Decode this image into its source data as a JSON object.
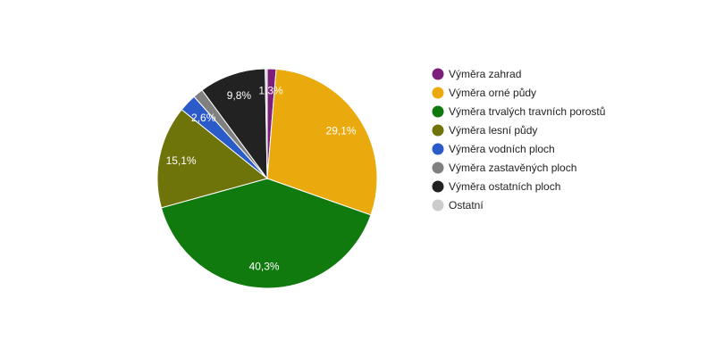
{
  "chart_data": {
    "type": "pie",
    "title": "",
    "legend_position": "right",
    "start_angle_deg": 0,
    "direction": "clockwise",
    "slices": [
      {
        "label": "Výměra zahrad",
        "value": 1.3,
        "display": "1,3%",
        "color": "#7b1f7a"
      },
      {
        "label": "Výměra orné půdy",
        "value": 29.1,
        "display": "29,1%",
        "color": "#eaa90c"
      },
      {
        "label": "Výměra trvalých travních porostů",
        "value": 40.3,
        "display": "40,3%",
        "color": "#107a0e"
      },
      {
        "label": "Výměra lesní půdy",
        "value": 15.1,
        "display": "15,1%",
        "color": "#6e740a"
      },
      {
        "label": "Výměra vodních ploch",
        "value": 2.6,
        "display": "2,6%",
        "color": "#2b5bc9"
      },
      {
        "label": "Výměra zastavěných ploch",
        "value": 1.5,
        "display": "",
        "color": "#808080"
      },
      {
        "label": "Výměra ostatních ploch",
        "value": 9.8,
        "display": "9,8%",
        "color": "#222222"
      },
      {
        "label": "Ostatní",
        "value": 0.3,
        "display": "",
        "color": "#cccccc"
      }
    ]
  }
}
